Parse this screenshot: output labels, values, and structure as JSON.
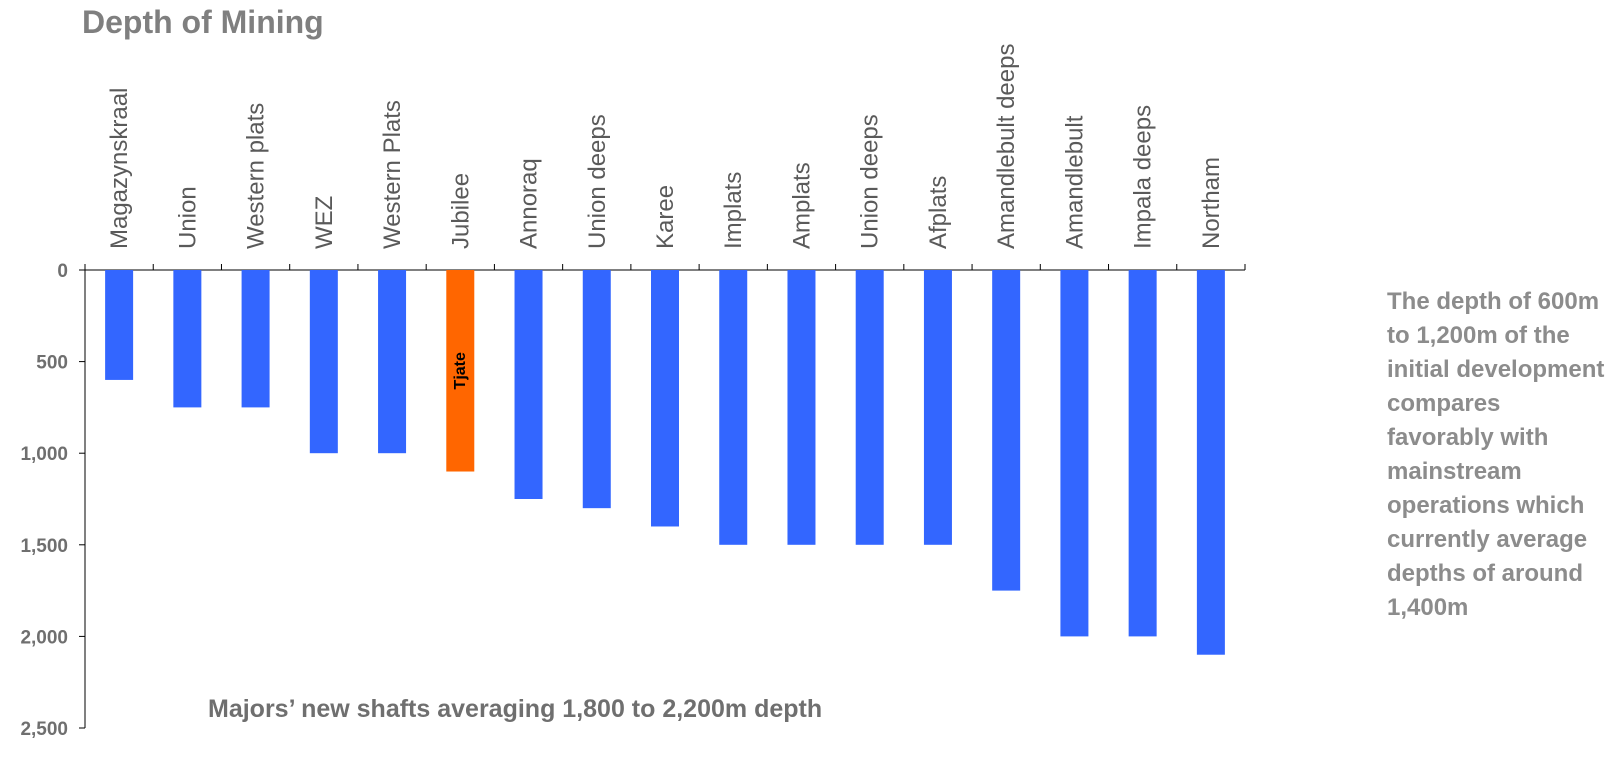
{
  "chart_data": {
    "type": "bar",
    "title": "Depth of Mining",
    "categories": [
      "Magazynskraal",
      "Union",
      "Western plats",
      "WEZ",
      "Western Plats",
      "Jubilee",
      "Annoraq",
      "Union deeps",
      "Karee",
      "Implats",
      "Amplats",
      "Union deeps",
      "Afplats",
      "Amandlebult deeps",
      "Amandlebult",
      "Impala deeps",
      "Northam"
    ],
    "values": [
      600,
      750,
      750,
      1000,
      1000,
      1100,
      1250,
      1300,
      1400,
      1500,
      1500,
      1500,
      1500,
      1750,
      2000,
      2000,
      2100
    ],
    "bar_labels": [
      "",
      "",
      "",
      "",
      "",
      "Tjate",
      "",
      "",
      "",
      "",
      "",
      "",
      "",
      "",
      "",
      "",
      ""
    ],
    "colors": [
      "#3366ff",
      "#3366ff",
      "#3366ff",
      "#3366ff",
      "#3366ff",
      "#ff6600",
      "#3366ff",
      "#3366ff",
      "#3366ff",
      "#3366ff",
      "#3366ff",
      "#3366ff",
      "#3366ff",
      "#3366ff",
      "#3366ff",
      "#3366ff",
      "#3366ff"
    ],
    "y_axis": {
      "inverted": true,
      "ylim": [
        0,
        2500
      ],
      "ticks": [
        0,
        500,
        1000,
        1500,
        2000,
        2500
      ],
      "tick_labels": [
        "0",
        "500",
        "1,000",
        "1,500",
        "2,000",
        "2,500"
      ]
    },
    "xlabel": "",
    "ylabel": "",
    "grid": false,
    "legend": "none",
    "annotation": "Majors’ new shafts averaging 1,800 to 2,200m depth"
  },
  "side_note": "The depth of 600m to 1,200m of the initial development compares favorably with mainstream operations which currently average depths of around 1,400m"
}
